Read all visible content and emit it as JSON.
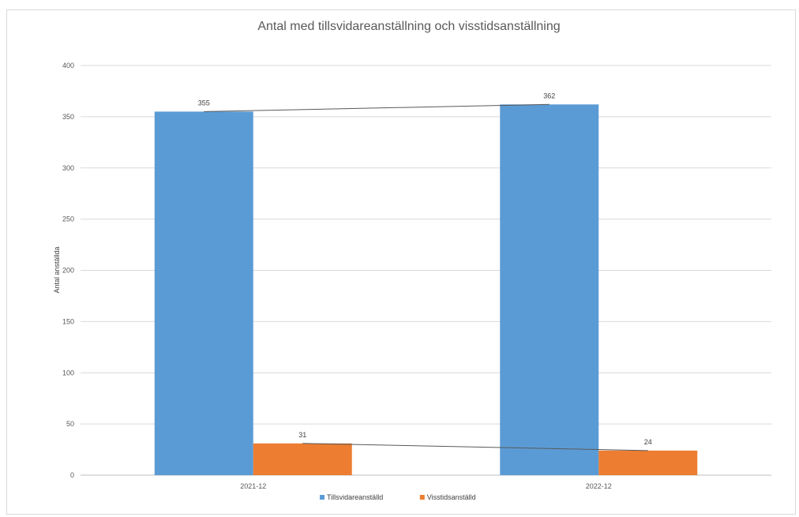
{
  "chart_data": {
    "type": "bar",
    "title": "Antal med tillsvidareanställning och visstidsanställning",
    "xlabel": "",
    "ylabel": "Antal anställda",
    "categories": [
      "2021-12",
      "2022-12"
    ],
    "series": [
      {
        "name": "Tillsvidareanställd",
        "values": [
          355,
          362
        ],
        "color": "#5b9bd5"
      },
      {
        "name": "Visstidsanställd",
        "values": [
          31,
          24
        ],
        "color": "#ed7d31"
      }
    ],
    "ylim": [
      0,
      400
    ],
    "yticks": [
      0,
      50,
      100,
      150,
      200,
      250,
      300,
      350,
      400
    ],
    "grid": true,
    "legend": "bottom",
    "trendlines": true,
    "data_labels": true
  }
}
